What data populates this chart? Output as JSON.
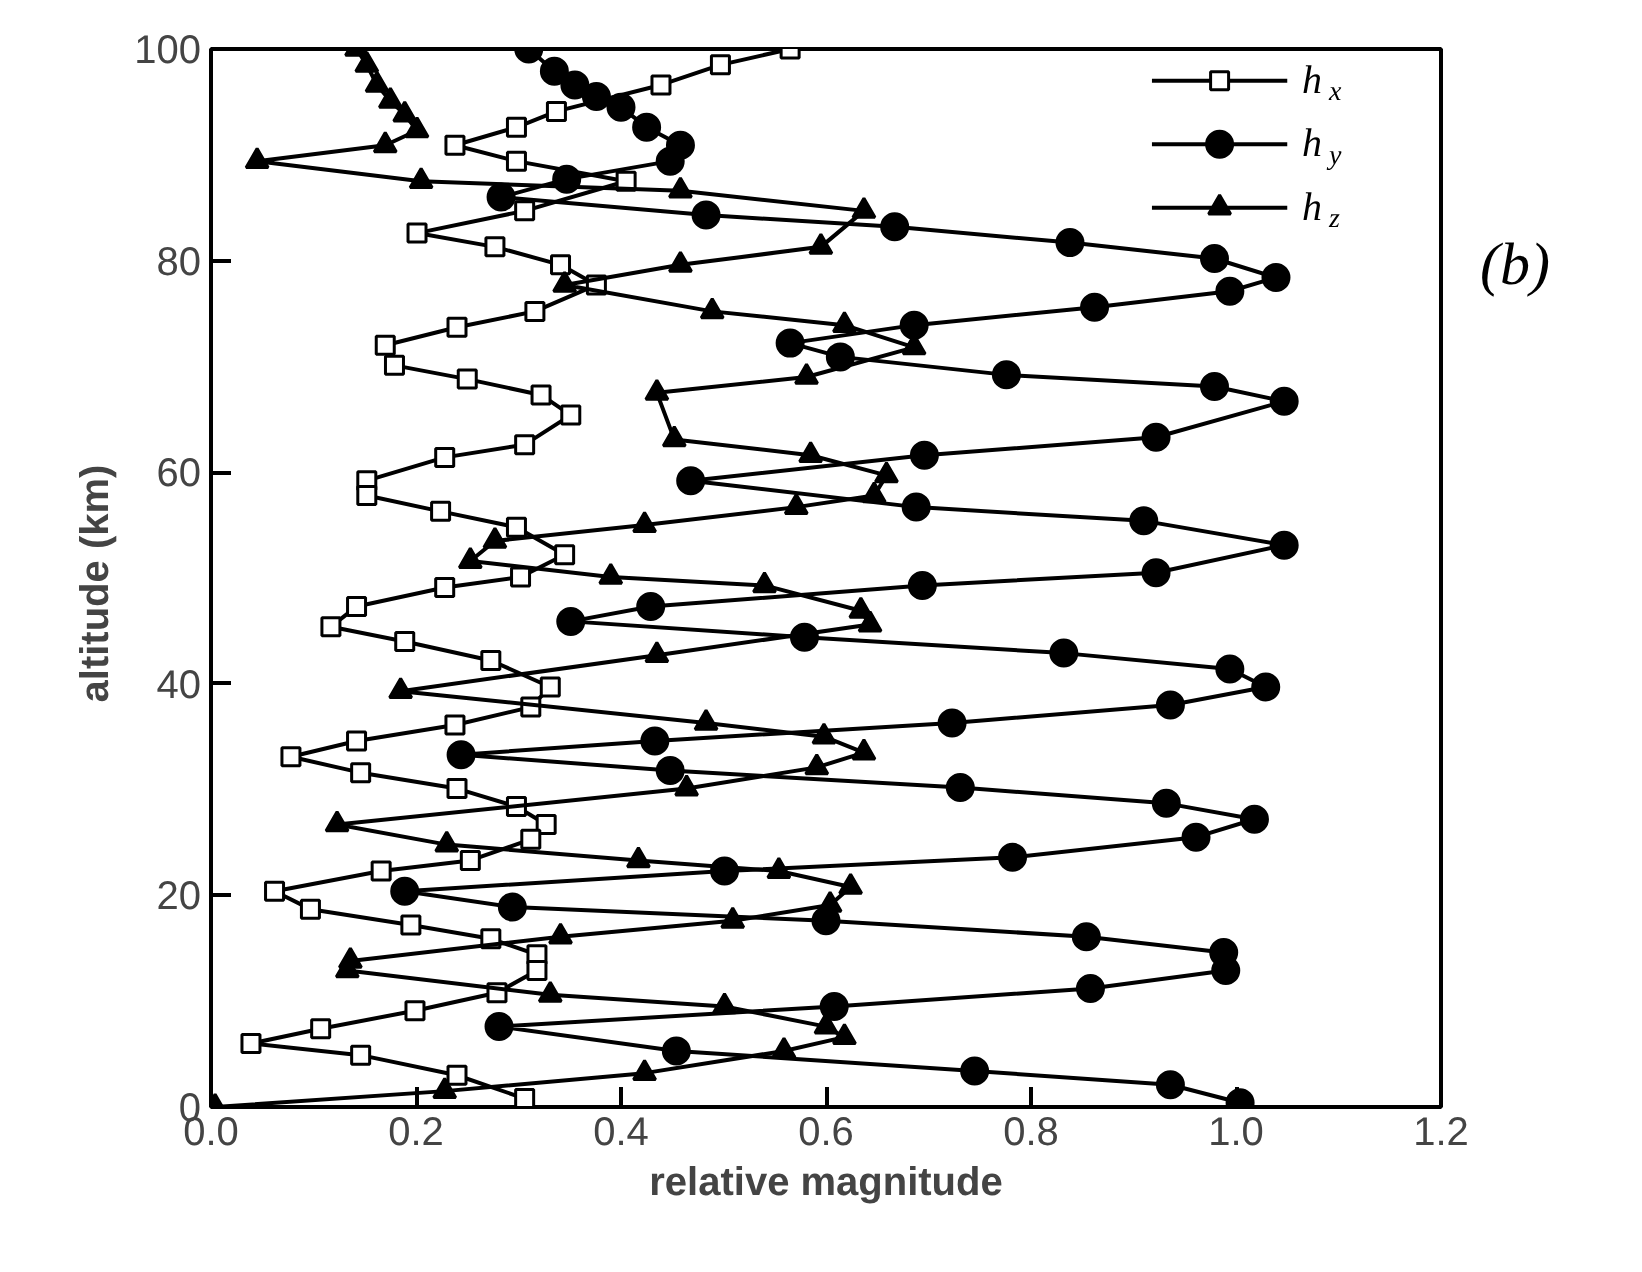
{
  "chart_data": {
    "type": "line",
    "xlabel": "relative magnitude",
    "ylabel": "altitude  (km)",
    "annotations": [
      "(b)"
    ],
    "xlim": [
      0,
      1.2
    ],
    "ylim": [
      0,
      100
    ],
    "xticks": [
      {
        "value": 0,
        "label": "0.0"
      },
      {
        "value": 0.2,
        "label": "0.2"
      },
      {
        "value": 0.4,
        "label": "0.4"
      },
      {
        "value": 0.6,
        "label": "0.6"
      },
      {
        "value": 0.8,
        "label": "0.8"
      },
      {
        "value": 1.0,
        "label": "1.0"
      },
      {
        "value": 1.2,
        "label": "1.2"
      }
    ],
    "yticks": [
      0,
      20,
      40,
      60,
      80,
      100
    ],
    "grid": false,
    "legend": "top right",
    "line_style": "solid",
    "series": [
      {
        "name": "h$_{x}$",
        "color": "#000000",
        "marker": "square",
        "x": [
          0.565,
          0.497,
          0.439,
          0.337,
          0.298,
          0.238,
          0.298,
          0.405,
          0.306,
          0.201,
          0.277,
          0.341,
          0.376,
          0.316,
          0.24,
          0.17,
          0.179,
          0.25,
          0.322,
          0.351,
          0.306,
          0.228,
          0.152,
          0.152,
          0.224,
          0.298,
          0.345,
          0.302,
          0.228,
          0.142,
          0.117,
          0.189,
          0.273,
          0.331,
          0.312,
          0.238,
          0.142,
          0.078,
          0.146,
          0.24,
          0.298,
          0.327,
          0.312,
          0.253,
          0.166,
          0.062,
          0.097,
          0.195,
          0.273,
          0.318,
          0.318,
          0.279,
          0.199,
          0.107,
          0.039,
          0.146,
          0.24,
          0.306
        ],
        "values": [
          100,
          98.5,
          96.6,
          94.1,
          92.6,
          90.9,
          89.4,
          87.5,
          84.7,
          82.6,
          81.3,
          79.6,
          77.7,
          75.2,
          73.7,
          72,
          70.1,
          68.8,
          67.3,
          65.4,
          62.6,
          61.4,
          59.2,
          57.8,
          56.3,
          54.8,
          52.2,
          50.1,
          49.1,
          47.3,
          45.4,
          44,
          42.2,
          39.7,
          37.8,
          36.1,
          34.6,
          33.1,
          31.6,
          30.1,
          28.4,
          26.7,
          25.3,
          23.3,
          22.3,
          20.4,
          18.7,
          17.2,
          15.9,
          14.4,
          12.9,
          10.8,
          9.1,
          7.4,
          6,
          4.9,
          3,
          0.8
        ]
      },
      {
        "name": "h$_{y}$",
        "color": "#000000",
        "marker": "circle",
        "x": [
          0.31,
          0.335,
          0.355,
          0.376,
          0.4,
          0.425,
          0.458,
          0.448,
          0.347,
          0.283,
          0.483,
          0.667,
          0.838,
          0.979,
          1.039,
          0.994,
          0.862,
          0.686,
          0.565,
          0.614,
          0.776,
          0.979,
          1.047,
          0.922,
          0.696,
          0.468,
          0.688,
          0.91,
          1.047,
          0.922,
          0.694,
          0.429,
          0.351,
          0.579,
          0.832,
          0.994,
          1.029,
          0.936,
          0.723,
          0.433,
          0.244,
          0.448,
          0.731,
          0.932,
          1.018,
          0.961,
          0.782,
          0.501,
          0.189,
          0.294,
          0.6,
          0.854,
          0.988,
          0.99,
          0.858,
          0.608,
          0.281,
          0.454,
          0.745,
          0.936,
          1.004
        ],
        "values": [
          100,
          97.9,
          96.6,
          95.5,
          94.5,
          92.6,
          90.9,
          89.4,
          87.7,
          86,
          84.3,
          83.2,
          81.7,
          80.2,
          78.4,
          77.1,
          75.6,
          73.9,
          72.2,
          70.9,
          69.2,
          68.1,
          66.7,
          63.3,
          61.6,
          59.2,
          56.7,
          55.4,
          53.1,
          50.5,
          49.3,
          47.3,
          45.9,
          44.4,
          42.9,
          41.4,
          39.7,
          38,
          36.3,
          34.6,
          33.3,
          31.8,
          30.2,
          28.7,
          27.2,
          25.5,
          23.6,
          22.3,
          20.4,
          18.9,
          17.6,
          16.1,
          14.6,
          12.9,
          11.2,
          9.5,
          7.6,
          5.3,
          3.4,
          2.1,
          0.4
        ]
      },
      {
        "name": "h$_{z}$",
        "color": "#000000",
        "marker": "triangle",
        "x": [
          0.142,
          0.152,
          0.162,
          0.175,
          0.189,
          0.201,
          0.17,
          0.045,
          0.205,
          0.458,
          0.637,
          0.595,
          0.458,
          0.345,
          0.489,
          0.618,
          0.686,
          0.581,
          0.435,
          0.452,
          0.585,
          0.659,
          0.647,
          0.571,
          0.423,
          0.277,
          0.253,
          0.39,
          0.54,
          0.634,
          0.643,
          0.435,
          0.185,
          0.483,
          0.598,
          0.637,
          0.591,
          0.464,
          0.123,
          0.23,
          0.417,
          0.554,
          0.624,
          0.604,
          0.509,
          0.341,
          0.136,
          0.133,
          0.331,
          0.501,
          0.6,
          0.618,
          0.559,
          0.423,
          0.228,
          0.004
        ],
        "values": [
          100,
          98.5,
          96.6,
          95.1,
          93.8,
          92.3,
          90.9,
          89.4,
          87.5,
          86.6,
          84.7,
          81.3,
          79.6,
          77.7,
          75.2,
          73.9,
          71.8,
          69,
          67.5,
          63.1,
          61.6,
          59.7,
          57.8,
          56.7,
          55,
          53.5,
          51.6,
          50.1,
          49.3,
          46.9,
          45.6,
          42.7,
          39.3,
          36.3,
          35,
          33.5,
          32.1,
          30.1,
          26.7,
          24.8,
          23.3,
          22.3,
          20.8,
          19.1,
          17.6,
          16.1,
          13.8,
          12.9,
          10.6,
          9.5,
          7.6,
          6.6,
          5.3,
          3.2,
          1.5,
          0
        ]
      }
    ]
  }
}
